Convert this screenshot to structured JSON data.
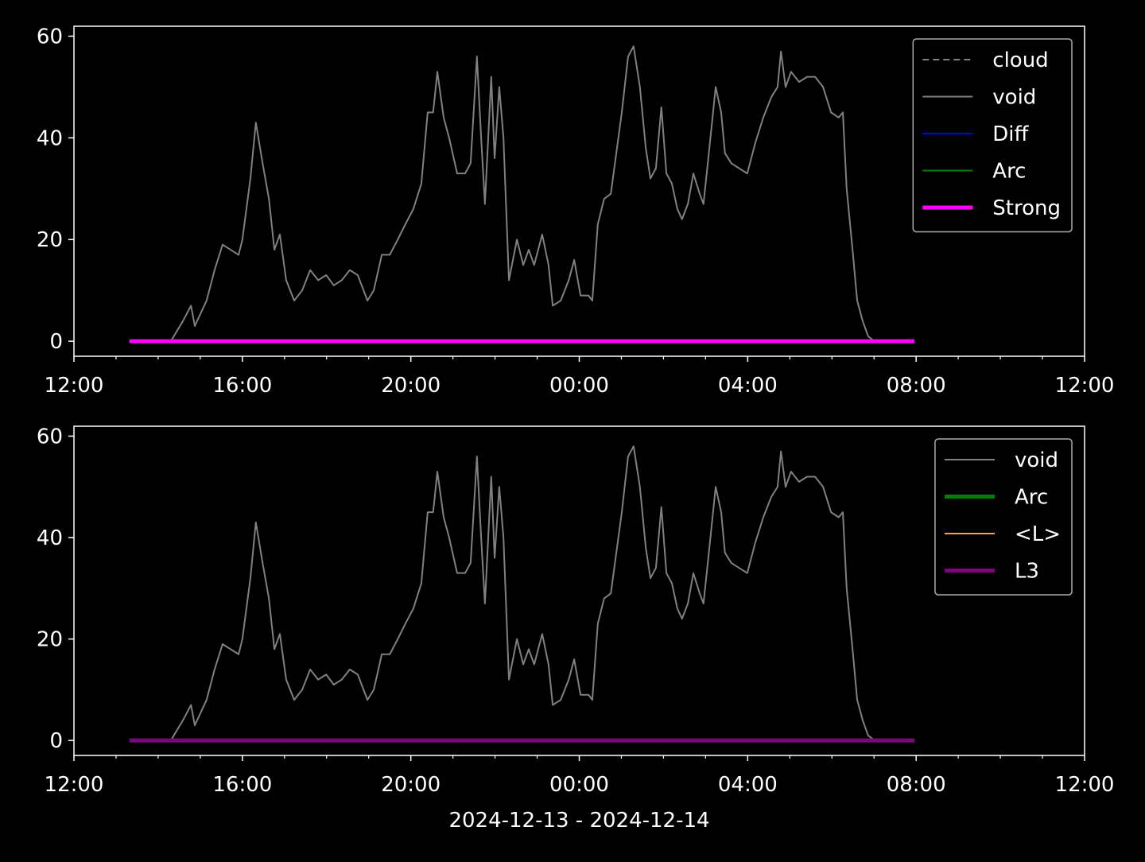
{
  "chart_data": [
    {
      "type": "line",
      "xlim": [
        12,
        36
      ],
      "ylim": [
        -2.95,
        61.95
      ],
      "xticks": [
        {
          "value": 12,
          "label": "12:00"
        },
        {
          "value": 16,
          "label": "16:00"
        },
        {
          "value": 20,
          "label": "20:00"
        },
        {
          "value": 24,
          "label": "00:00"
        },
        {
          "value": 28,
          "label": "04:00"
        },
        {
          "value": 32,
          "label": "08:00"
        },
        {
          "value": 36,
          "label": "12:00"
        }
      ],
      "xminorticks": [
        13,
        14,
        15,
        17,
        18,
        19,
        21,
        22,
        23,
        25,
        26,
        27,
        29,
        30,
        31,
        33,
        34,
        35
      ],
      "yticks": [
        0,
        20,
        40,
        60
      ],
      "legend": "upper right",
      "series": [
        {
          "name": "cloud",
          "color": "#808080",
          "linewidth": 1,
          "dash": true,
          "x": [],
          "values": []
        },
        {
          "name": "void",
          "color": "#808080",
          "linewidth": 1,
          "x": [
            14.3,
            14.59,
            14.78,
            14.87,
            15.15,
            15.34,
            15.53,
            15.72,
            15.91,
            16.0,
            16.19,
            16.32,
            16.48,
            16.63,
            16.76,
            16.89,
            17.04,
            17.23,
            17.42,
            17.61,
            17.8,
            17.99,
            18.17,
            18.36,
            18.55,
            18.74,
            18.97,
            19.12,
            19.31,
            19.5,
            19.69,
            19.87,
            20.06,
            20.25,
            20.4,
            20.53,
            20.63,
            20.78,
            20.91,
            21.1,
            21.29,
            21.42,
            21.57,
            21.67,
            21.76,
            21.91,
            21.99,
            22.1,
            22.2,
            22.33,
            22.52,
            22.67,
            22.8,
            22.93,
            23.12,
            23.27,
            23.37,
            23.56,
            23.75,
            23.88,
            24.03,
            24.22,
            24.31,
            24.44,
            24.59,
            24.75,
            24.88,
            25.01,
            25.16,
            25.29,
            25.44,
            25.58,
            25.69,
            25.82,
            25.95,
            26.07,
            26.2,
            26.33,
            26.44,
            26.58,
            26.71,
            26.86,
            26.95,
            27.09,
            27.24,
            27.37,
            27.46,
            27.61,
            27.8,
            27.99,
            28.18,
            28.37,
            28.56,
            28.71,
            28.79,
            28.9,
            29.03,
            29.22,
            29.41,
            29.6,
            29.79,
            29.98,
            30.16,
            30.26,
            30.35,
            30.49,
            30.6,
            30.73,
            30.86,
            31.01
          ],
          "values": [
            0,
            4,
            7,
            3,
            8,
            14,
            19,
            18,
            17,
            20,
            32,
            43,
            35,
            28,
            18,
            21,
            12,
            8,
            10,
            14,
            12,
            13,
            11,
            12,
            14,
            13,
            8,
            10,
            17,
            17,
            20,
            23,
            26,
            31,
            45,
            45,
            53,
            44,
            40,
            33,
            33,
            35,
            56,
            40,
            27,
            52,
            36,
            50,
            40,
            12,
            20,
            15,
            18,
            15,
            21,
            15,
            7,
            8,
            12,
            16,
            9,
            9,
            8,
            23,
            28,
            29,
            37,
            45,
            56,
            58,
            50,
            38,
            32,
            34,
            46,
            33,
            31,
            26,
            24,
            27,
            33,
            29,
            27,
            38,
            50,
            45,
            37,
            35,
            34,
            33,
            39,
            44,
            48,
            50,
            57,
            50,
            53,
            51,
            52,
            52,
            50,
            45,
            44,
            45,
            30,
            18,
            8,
            4,
            1,
            0
          ]
        },
        {
          "name": "Diff",
          "color": "#0000ff",
          "linewidth": 1,
          "x": [
            13.32,
            31.96
          ],
          "values": [
            0,
            0
          ]
        },
        {
          "name": "Arc",
          "color": "#008000",
          "linewidth": 1,
          "x": [
            13.32,
            31.96
          ],
          "values": [
            0,
            0
          ]
        },
        {
          "name": "Strong",
          "color": "#ff00ff",
          "linewidth": 2.5,
          "x": [
            13.32,
            31.96
          ],
          "values": [
            0,
            0
          ]
        }
      ]
    },
    {
      "type": "line",
      "xlim": [
        12,
        36
      ],
      "ylim": [
        -2.95,
        61.95
      ],
      "xlabel": "2024-12-13 - 2024-12-14",
      "xticks": [
        {
          "value": 12,
          "label": "12:00"
        },
        {
          "value": 16,
          "label": "16:00"
        },
        {
          "value": 20,
          "label": "20:00"
        },
        {
          "value": 24,
          "label": "00:00"
        },
        {
          "value": 28,
          "label": "04:00"
        },
        {
          "value": 32,
          "label": "08:00"
        },
        {
          "value": 36,
          "label": "12:00"
        }
      ],
      "xminorticks": [
        13,
        14,
        15,
        17,
        18,
        19,
        21,
        22,
        23,
        25,
        26,
        27,
        29,
        30,
        31,
        33,
        34,
        35
      ],
      "yticks": [
        0,
        20,
        40,
        60
      ],
      "legend": "upper right",
      "series": [
        {
          "name": "void",
          "color": "#808080",
          "linewidth": 1,
          "x": [
            14.3,
            14.59,
            14.78,
            14.87,
            15.15,
            15.34,
            15.53,
            15.72,
            15.91,
            16.0,
            16.19,
            16.32,
            16.48,
            16.63,
            16.76,
            16.89,
            17.04,
            17.23,
            17.42,
            17.61,
            17.8,
            17.99,
            18.17,
            18.36,
            18.55,
            18.74,
            18.97,
            19.12,
            19.31,
            19.5,
            19.69,
            19.87,
            20.06,
            20.25,
            20.4,
            20.53,
            20.63,
            20.78,
            20.91,
            21.1,
            21.29,
            21.42,
            21.57,
            21.67,
            21.76,
            21.91,
            21.99,
            22.1,
            22.2,
            22.33,
            22.52,
            22.67,
            22.8,
            22.93,
            23.12,
            23.27,
            23.37,
            23.56,
            23.75,
            23.88,
            24.03,
            24.22,
            24.31,
            24.44,
            24.59,
            24.75,
            24.88,
            25.01,
            25.16,
            25.29,
            25.44,
            25.58,
            25.69,
            25.82,
            25.95,
            26.07,
            26.2,
            26.33,
            26.44,
            26.58,
            26.71,
            26.86,
            26.95,
            27.09,
            27.24,
            27.37,
            27.46,
            27.61,
            27.8,
            27.99,
            28.18,
            28.37,
            28.56,
            28.71,
            28.79,
            28.9,
            29.03,
            29.22,
            29.41,
            29.6,
            29.79,
            29.98,
            30.16,
            30.26,
            30.35,
            30.49,
            30.6,
            30.73,
            30.86,
            31.01
          ],
          "values": [
            0,
            4,
            7,
            3,
            8,
            14,
            19,
            18,
            17,
            20,
            32,
            43,
            35,
            28,
            18,
            21,
            12,
            8,
            10,
            14,
            12,
            13,
            11,
            12,
            14,
            13,
            8,
            10,
            17,
            17,
            20,
            23,
            26,
            31,
            45,
            45,
            53,
            44,
            40,
            33,
            33,
            35,
            56,
            40,
            27,
            52,
            36,
            50,
            40,
            12,
            20,
            15,
            18,
            15,
            21,
            15,
            7,
            8,
            12,
            16,
            9,
            9,
            8,
            23,
            28,
            29,
            37,
            45,
            56,
            58,
            50,
            38,
            32,
            34,
            46,
            33,
            31,
            26,
            24,
            27,
            33,
            29,
            27,
            38,
            50,
            45,
            37,
            35,
            34,
            33,
            39,
            44,
            48,
            50,
            57,
            50,
            53,
            51,
            52,
            52,
            50,
            45,
            44,
            45,
            30,
            18,
            8,
            4,
            1,
            0
          ]
        },
        {
          "name": "Arc",
          "color": "#008000",
          "linewidth": 2.5,
          "x": [
            13.32,
            31.96
          ],
          "values": [
            0,
            0
          ]
        },
        {
          "name": "<L>",
          "color": "#ff9f3f",
          "linewidth": 1,
          "x": [
            13.32,
            31.96
          ],
          "values": [
            0,
            0
          ]
        },
        {
          "name": "L3",
          "color": "#800080",
          "linewidth": 2.5,
          "x": [
            13.32,
            31.96
          ],
          "values": [
            0,
            0
          ]
        }
      ]
    }
  ]
}
